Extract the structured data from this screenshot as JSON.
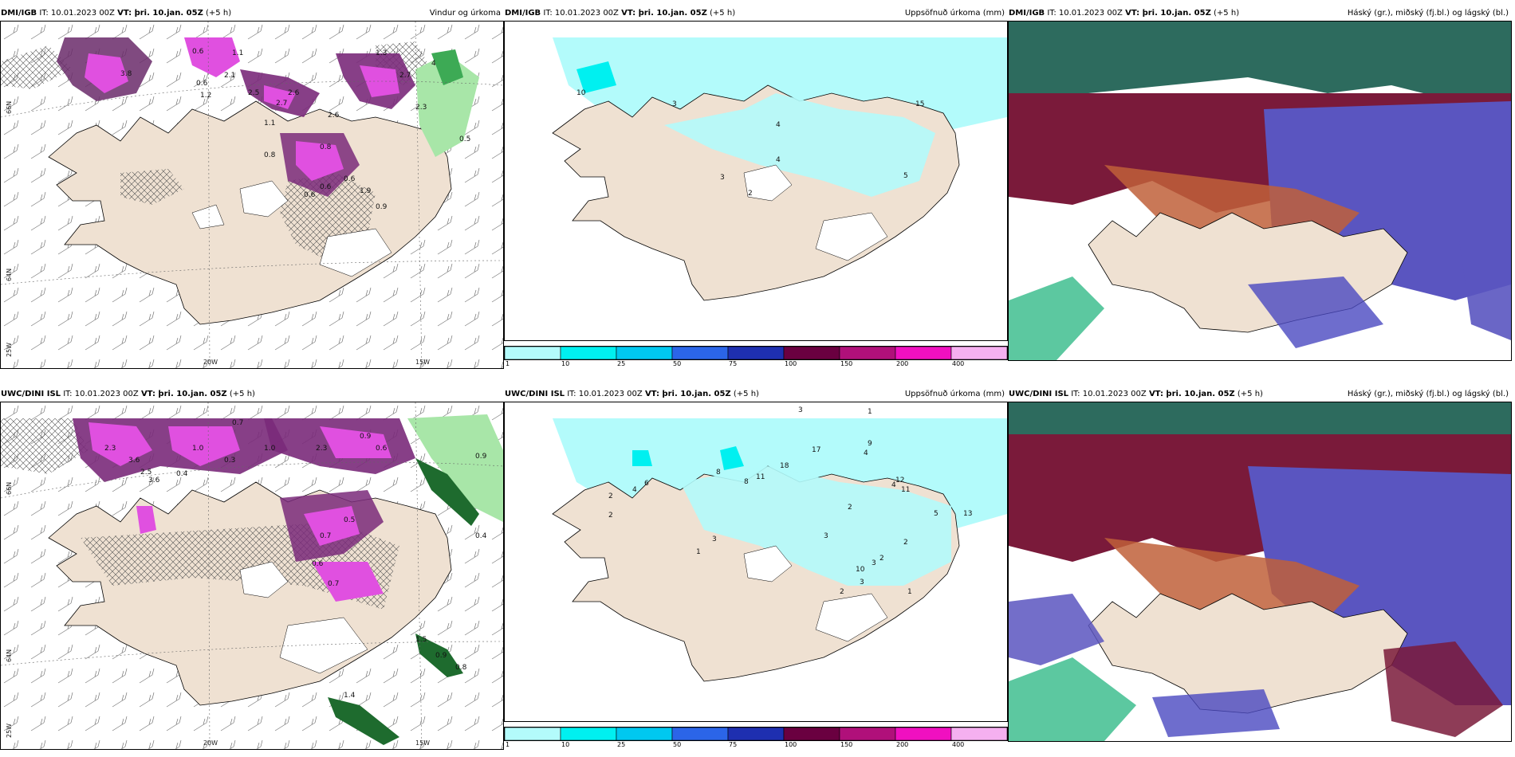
{
  "panels": {
    "p1": {
      "model": "DMI/IGB",
      "it": "IT: 10.01.2023 00Z",
      "vt": "VT: þri. 10.jan. 05Z",
      "lead": "(+5 h)",
      "title": "Vindur og úrkoma"
    },
    "p2": {
      "model": "DMI/IGB",
      "it": "IT: 10.01.2023 00Z",
      "vt": "VT: þri. 10.jan. 05Z",
      "lead": "(+5 h)",
      "title": "Uppsöfnuð úrkoma (mm)"
    },
    "p3": {
      "model": "DMI/IGB",
      "it": "IT: 10.01.2023 00Z",
      "vt": "VT: þri. 10.jan. 05Z",
      "lead": "(+5 h)",
      "title": "Háský (gr.), miðský (fj.bl.) og lágský (bl.)"
    },
    "p4": {
      "model": "UWC/DINI ISL",
      "it": "IT: 10.01.2023 00Z",
      "vt": "VT: þri. 10.jan. 05Z",
      "lead": "(+5 h)",
      "title": ""
    },
    "p5": {
      "model": "UWC/DINI ISL",
      "it": "IT: 10.01.2023 00Z",
      "vt": "VT: þri. 10.jan. 05Z",
      "lead": "(+5 h)",
      "title": "Uppsöfnuð úrkoma (mm)"
    },
    "p6": {
      "model": "UWC/DINI ISL",
      "it": "IT: 10.01.2023 00Z",
      "vt": "VT: þri. 10.jan. 05Z",
      "lead": "(+5 h)",
      "title": "Háský (gr.), miðský (fj.bl.) og lágský (bl.)"
    }
  },
  "axes": {
    "lon_20w": "20W",
    "lon_15w": "15W",
    "lat_66n": "66N",
    "lat_64n": "64N",
    "lon_25w": "25W"
  },
  "colorbar": {
    "labels": [
      "1",
      "10",
      "25",
      "50",
      "75",
      "100",
      "150",
      "200",
      "400"
    ],
    "colors": [
      "#b3fbfb",
      "#00f0f0",
      "#00c8f0",
      "#2b65e8",
      "#1e2fb0",
      "#6a0040",
      "#b0107a",
      "#f010c0",
      "#f5b0f0"
    ]
  },
  "wind_precip_values_top": [
    "0.6",
    "1.1",
    "3.8",
    "2.1",
    "2.5",
    "0.6",
    "2.6",
    "2.7",
    "2.6",
    "2.7",
    "2.3",
    "1.3",
    "1.1",
    "0.5",
    "0.8",
    "0.6",
    "1.9",
    "0.9",
    "0.6",
    "0.6",
    "0.8",
    "1.2",
    "4"
  ],
  "wind_precip_values_bottom": [
    "0.7",
    "1.0",
    "2.3",
    "3.6",
    "2.5",
    "3.6",
    "0.4",
    "1.0",
    "0.3",
    "2.3",
    "0.9",
    "0.6",
    "0.5",
    "0.7",
    "0.6",
    "0.7",
    "1.5",
    "0.9",
    "0.8",
    "1.4",
    "0.9",
    "0.4"
  ],
  "accum_values_top": [
    "10",
    "3",
    "4",
    "4",
    "3",
    "2",
    "5",
    "15"
  ],
  "accum_values_bottom": [
    "3",
    "1",
    "9",
    "4",
    "12",
    "11",
    "3",
    "17",
    "18",
    "11",
    "8",
    "8",
    "6",
    "4",
    "2",
    "2",
    "3",
    "2",
    "4",
    "2",
    "2",
    "3",
    "10",
    "2",
    "1",
    "13",
    "5",
    "1",
    "3"
  ]
}
